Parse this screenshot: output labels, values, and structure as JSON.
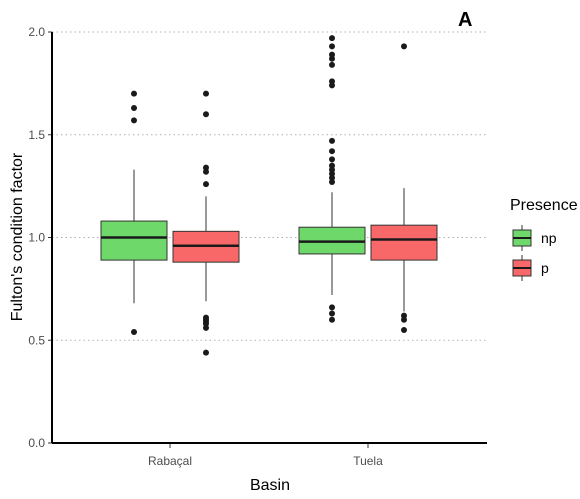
{
  "chart_data": {
    "type": "boxplot",
    "panel_label": "A",
    "xlabel": "Basin",
    "ylabel": "Fulton's condition factor",
    "ylim": [
      0,
      2
    ],
    "yticks": [
      "0.0",
      "0.5",
      "1.0",
      "1.5",
      "2.0"
    ],
    "grid": "horizontal dotted",
    "categories": [
      "Rabaçal",
      "Tuela"
    ],
    "legend": {
      "title": "Presence",
      "placement": "right",
      "entries": [
        {
          "label": "np",
          "color": "#6fd86a"
        },
        {
          "label": "p",
          "color": "#f86868"
        }
      ]
    },
    "groups": [
      {
        "category": "Rabaçal",
        "series": "np",
        "color": "#6fd86a",
        "whisker_low": 0.68,
        "q1": 0.89,
        "median": 1.0,
        "q3": 1.08,
        "whisker_high": 1.33,
        "outliers": [
          0.54,
          1.57,
          1.63,
          1.7
        ]
      },
      {
        "category": "Rabaçal",
        "series": "p",
        "color": "#f86868",
        "whisker_low": 0.69,
        "q1": 0.88,
        "median": 0.96,
        "q3": 1.03,
        "whisker_high": 1.2,
        "outliers": [
          0.44,
          0.56,
          0.58,
          0.59,
          0.6,
          0.61,
          1.26,
          1.32,
          1.34,
          1.6,
          1.7
        ]
      },
      {
        "category": "Tuela",
        "series": "np",
        "color": "#6fd86a",
        "whisker_low": 0.72,
        "q1": 0.92,
        "median": 0.98,
        "q3": 1.05,
        "whisker_high": 1.22,
        "outliers": [
          0.6,
          0.63,
          0.66,
          1.27,
          1.29,
          1.31,
          1.33,
          1.35,
          1.38,
          1.42,
          1.47,
          1.74,
          1.76,
          1.84,
          1.87,
          1.89,
          1.93,
          1.97
        ]
      },
      {
        "category": "Tuela",
        "series": "p",
        "color": "#f86868",
        "whisker_low": 0.64,
        "q1": 0.89,
        "median": 0.99,
        "q3": 1.06,
        "whisker_high": 1.24,
        "outliers": [
          0.55,
          0.6,
          0.62,
          1.93
        ]
      }
    ]
  }
}
